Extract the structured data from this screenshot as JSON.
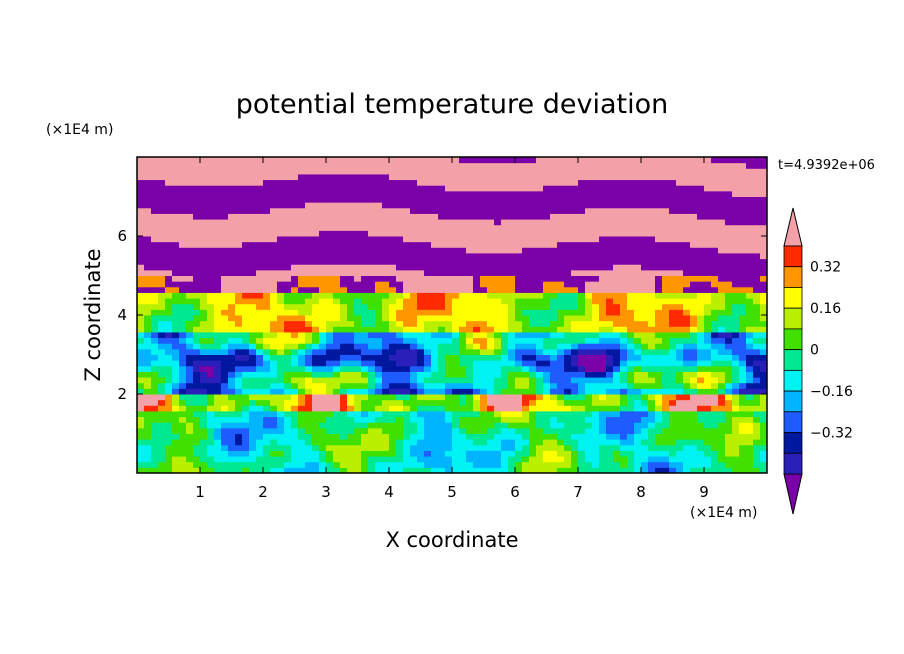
{
  "chart_data": {
    "type": "heatmap",
    "title": "potential temperature deviation",
    "xlabel": "X coordinate",
    "ylabel": "Z coordinate",
    "x_unit": "(×1E4 m)",
    "y_unit": "(×1E4 m)",
    "time_label": "t=4.9392e+06",
    "xlim": [
      0,
      10
    ],
    "ylim": [
      0,
      8
    ],
    "x_ticks": [
      "1",
      "2",
      "3",
      "4",
      "5",
      "6",
      "7",
      "8",
      "9"
    ],
    "y_ticks": [
      "2",
      "4",
      "6"
    ],
    "colorbar": {
      "tick_labels": [
        "0.32",
        "0.16",
        "0",
        "−0.16",
        "−0.32"
      ],
      "levels": [
        -0.48,
        -0.4,
        -0.32,
        -0.24,
        -0.16,
        -0.08,
        0,
        0.08,
        0.16,
        0.24,
        0.32,
        0.4,
        0.48
      ],
      "colors": [
        "#7a00a8",
        "#2a1fb8",
        "#0017a0",
        "#1e5cff",
        "#00b4ff",
        "#00f2f2",
        "#00e890",
        "#40e000",
        "#b8f000",
        "#ffff00",
        "#ff9600",
        "#ff2a00",
        "#f4a0a8"
      ]
    },
    "layers_top_to_bottom": [
      {
        "z_range": [
          6.5,
          8.0
        ],
        "pattern": "alternating bands",
        "values": [
          0.48,
          -0.48
        ]
      },
      {
        "z_range": [
          5.0,
          6.5
        ],
        "pattern": "alternating bands",
        "values": [
          -0.48,
          0.48
        ]
      },
      {
        "z_range": [
          3.5,
          4.6
        ],
        "pattern": "mixed warm",
        "values": [
          0.32,
          0.16,
          0.48
        ]
      },
      {
        "z_range": [
          2.0,
          3.5
        ],
        "pattern": "mixed cold",
        "values": [
          -0.32,
          -0.16,
          0.08
        ]
      },
      {
        "z_range": [
          0.0,
          2.0
        ],
        "pattern": "turbulent eddies",
        "values": [
          -0.08,
          0.08,
          -0.24,
          0.24
        ]
      }
    ]
  }
}
